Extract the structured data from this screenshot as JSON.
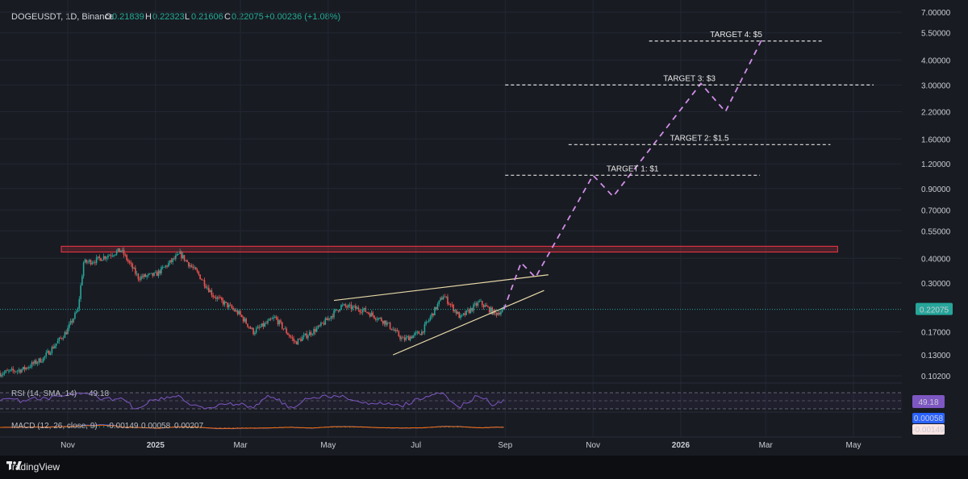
{
  "header": {
    "symbol": "DOGEUSDT, 1D, Binance",
    "o_label": "O",
    "o_value": "0.21839",
    "h_label": "H",
    "h_value": "0.22323",
    "l_label": "L",
    "l_value": "0.21606",
    "c_label": "C",
    "c_value": "0.22075",
    "change": "+0.00236 (+1.08%)"
  },
  "colors": {
    "up": "#26a69a",
    "down": "#ef5350",
    "projection": "#d28ee8",
    "wedge": "#e8d9a8",
    "resistance": "#f23645",
    "rsi": "#7e57c2",
    "macd": "#2962ff",
    "signal": "#ff6d00",
    "price_tag": "#26a69a"
  },
  "chart_data": {
    "type": "candlestick",
    "y_scale": "log",
    "y_ticks": [
      "7.00000",
      "5.50000",
      "4.00000",
      "3.00000",
      "2.20000",
      "1.60000",
      "1.20000",
      "0.90000",
      "0.70000",
      "0.55000",
      "0.40000",
      "0.30000",
      "0.17000",
      "0.13000",
      "0.10200"
    ],
    "y_tick_values": [
      7.0,
      5.5,
      4.0,
      3.0,
      2.2,
      1.6,
      1.2,
      0.9,
      0.7,
      0.55,
      0.4,
      0.3,
      0.17,
      0.13,
      0.102
    ],
    "x_ticks": [
      "Nov",
      "2025",
      "Mar",
      "May",
      "Jul",
      "Sep",
      "Nov",
      "2026",
      "Mar",
      "May"
    ],
    "x_tick_dates": [
      "2024-11-01",
      "2025-01-01",
      "2025-03-01",
      "2025-05-01",
      "2025-07-01",
      "2025-09-01",
      "2025-11-01",
      "2026-01-01",
      "2026-03-01",
      "2026-05-01"
    ],
    "last_price": "0.22075",
    "close_path": [
      [
        "2024-09-15",
        0.105
      ],
      [
        "2024-10-01",
        0.11
      ],
      [
        "2024-10-15",
        0.125
      ],
      [
        "2024-10-31",
        0.17
      ],
      [
        "2024-11-08",
        0.22
      ],
      [
        "2024-11-12",
        0.38
      ],
      [
        "2024-11-20",
        0.39
      ],
      [
        "2024-12-08",
        0.44
      ],
      [
        "2024-12-20",
        0.32
      ],
      [
        "2025-01-01",
        0.33
      ],
      [
        "2025-01-18",
        0.42
      ],
      [
        "2025-01-31",
        0.33
      ],
      [
        "2025-02-10",
        0.26
      ],
      [
        "2025-02-28",
        0.21
      ],
      [
        "2025-03-10",
        0.17
      ],
      [
        "2025-03-25",
        0.2
      ],
      [
        "2025-04-08",
        0.15
      ],
      [
        "2025-04-25",
        0.18
      ],
      [
        "2025-05-10",
        0.23
      ],
      [
        "2025-05-25",
        0.22
      ],
      [
        "2025-06-10",
        0.19
      ],
      [
        "2025-06-22",
        0.155
      ],
      [
        "2025-07-05",
        0.17
      ],
      [
        "2025-07-20",
        0.26
      ],
      [
        "2025-08-01",
        0.2
      ],
      [
        "2025-08-14",
        0.24
      ],
      [
        "2025-08-25",
        0.21
      ],
      [
        "2025-08-31",
        0.22
      ]
    ],
    "resistance_zone": {
      "low": 0.43,
      "high": 0.46,
      "from": "2024-11-01",
      "to": "2026-04-20"
    },
    "wedge_upper": [
      [
        "2025-05-05",
        0.245
      ],
      [
        "2025-10-01",
        0.33
      ]
    ],
    "wedge_lower": [
      [
        "2025-06-15",
        0.13
      ],
      [
        "2025-09-28",
        0.275
      ]
    ],
    "projection": [
      [
        "2025-08-31",
        0.22
      ],
      [
        "2025-09-12",
        0.38
      ],
      [
        "2025-09-22",
        0.32
      ],
      [
        "2025-11-01",
        1.05
      ],
      [
        "2025-11-15",
        0.82
      ],
      [
        "2026-01-15",
        3.05
      ],
      [
        "2026-02-01",
        2.2
      ],
      [
        "2026-02-27",
        5.2
      ]
    ],
    "targets": [
      {
        "label": "TARGET 1: $1",
        "value": 1.05,
        "from": "2025-09-01",
        "to": "2026-02-25"
      },
      {
        "label": "TARGET 2: $1.5",
        "value": 1.5,
        "from": "2025-10-15",
        "to": "2026-04-15"
      },
      {
        "label": "TARGET 3: $3",
        "value": 3.0,
        "from": "2025-09-01",
        "to": "2026-05-15"
      },
      {
        "label": "TARGET 4: $5",
        "value": 5.0,
        "from": "2025-12-10",
        "to": "2026-04-10"
      }
    ],
    "rsi": {
      "label": "RSI (14, SMA, 14)",
      "value": "49.18",
      "shown_value": "49.18"
    },
    "macd": {
      "label": "MACD (12, 26, close, 9)",
      "histogram": "-0.00149",
      "macd": "0.00058",
      "signal": "0.00207",
      "tag_macd": "0.00058",
      "tag_hist": "-0.00149"
    }
  },
  "footer": {
    "brand": "TradingView"
  }
}
